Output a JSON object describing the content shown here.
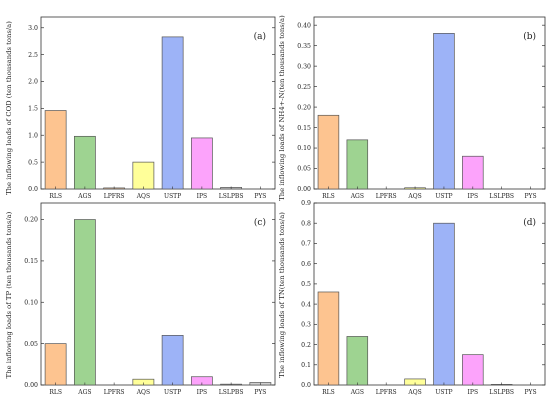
{
  "chart_data": [
    {
      "type": "bar",
      "panel_label": "(a)",
      "ylabel": "The inflowing loads of COD (ten thousands tons/a)",
      "categories": [
        "RLS",
        "AGS",
        "LPFRS",
        "AQS",
        "USTP",
        "IPS",
        "LSLPBS",
        "PYS"
      ],
      "values": [
        1.46,
        0.98,
        0.02,
        0.5,
        2.83,
        0.95,
        0.03,
        0.0
      ],
      "ylim": [
        0,
        3.2
      ],
      "yticks": [
        "0.0",
        "0.5",
        "1.0",
        "1.5",
        "2.0",
        "2.5",
        "3.0"
      ],
      "ytick_values": [
        0,
        0.5,
        1.0,
        1.5,
        2.0,
        2.5,
        3.0
      ],
      "grid": false
    },
    {
      "type": "bar",
      "panel_label": "(b)",
      "ylabel": "The inflowing loads of NH4+-N(ten thousands tons/a)",
      "categories": [
        "RLS",
        "AGS",
        "LPFRS",
        "AQS",
        "USTP",
        "IPS",
        "LSLPBS",
        "PYS"
      ],
      "values": [
        0.18,
        0.12,
        0.0,
        0.003,
        0.38,
        0.08,
        0.0,
        0.0
      ],
      "ylim": [
        0,
        0.42
      ],
      "yticks": [
        "0.00",
        "0.05",
        "0.10",
        "0.15",
        "0.20",
        "0.25",
        "0.30",
        "0.35",
        "0.40"
      ],
      "ytick_values": [
        0,
        0.05,
        0.1,
        0.15,
        0.2,
        0.25,
        0.3,
        0.35,
        0.4
      ],
      "grid": false
    },
    {
      "type": "bar",
      "panel_label": "(c)",
      "ylabel": "The inflowing loads of TP (ten thousands tons/a)",
      "categories": [
        "RLS",
        "AGS",
        "LPFRS",
        "AQS",
        "USTP",
        "IPS",
        "LSLPBS",
        "PYS"
      ],
      "values": [
        0.05,
        0.2,
        0.0,
        0.007,
        0.06,
        0.01,
        0.001,
        0.003
      ],
      "ylim": [
        0,
        0.22
      ],
      "yticks": [
        "0.00",
        "0.05",
        "0.10",
        "0.15",
        "0.20"
      ],
      "ytick_values": [
        0,
        0.05,
        0.1,
        0.15,
        0.2
      ],
      "grid": false
    },
    {
      "type": "bar",
      "panel_label": "(d)",
      "ylabel": "The inflowing loads of TN(ten thousands tons/a)",
      "categories": [
        "RLS",
        "AGS",
        "LPFRS",
        "AQS",
        "USTP",
        "IPS",
        "LSLPBS",
        "PYS"
      ],
      "values": [
        0.46,
        0.24,
        0.0,
        0.03,
        0.8,
        0.15,
        0.003,
        0.0
      ],
      "ylim": [
        0,
        0.9
      ],
      "yticks": [
        "0.0",
        "0.1",
        "0.2",
        "0.3",
        "0.4",
        "0.5",
        "0.6",
        "0.7",
        "0.8",
        "0.9"
      ],
      "ytick_values": [
        0,
        0.1,
        0.2,
        0.3,
        0.4,
        0.5,
        0.6,
        0.7,
        0.8,
        0.9
      ],
      "grid": false
    }
  ],
  "colors": [
    "#fdc490",
    "#9ed391",
    "#f5c79d",
    "#ffff99",
    "#9db3f7",
    "#fca3fb",
    "#c7c7c7",
    "#cfcfcf"
  ],
  "bar_stroke": "#555555"
}
